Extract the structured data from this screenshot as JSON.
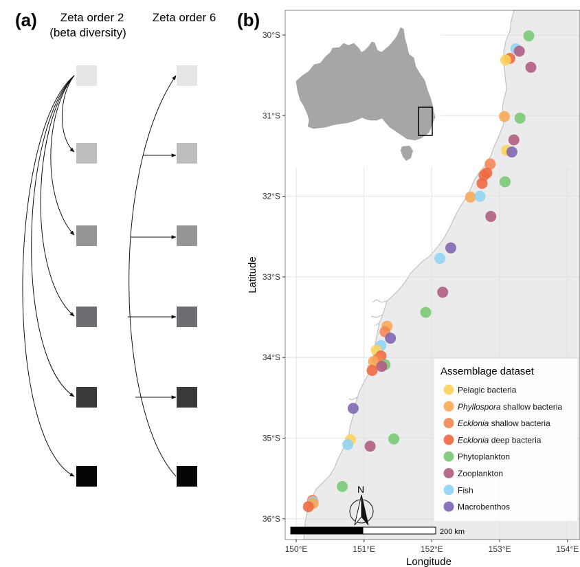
{
  "panel_a": {
    "label": "(a)",
    "col1_title_line1": "Zeta order 2",
    "col1_title_line2": "(beta diversity)",
    "col2_title": "Zeta order 6",
    "square_colors": [
      "#e6e6e7",
      "#bcbdbf",
      "#949597",
      "#6c6d70",
      "#38393b",
      "#050505"
    ]
  },
  "panel_b": {
    "label": "(b)",
    "xlabel": "Longitude",
    "ylabel": "Latitude",
    "x_ticks": [
      "150°E",
      "151°E",
      "152°E",
      "153°E",
      "154°E"
    ],
    "y_ticks": [
      "30°S",
      "31°S",
      "32°S",
      "33°S",
      "34°S",
      "35°S",
      "36°S"
    ],
    "scale_bar_label": "200 km",
    "north_label": "N",
    "legend": {
      "title": "Assemblage dataset",
      "items": [
        {
          "key": "pelagic",
          "prefix": "",
          "italic": "",
          "label": "Pelagic bacteria",
          "color": "#fbd35a"
        },
        {
          "key": "phyllospora",
          "prefix": "",
          "italic": "Phyllospora",
          "label": " shallow bacteria",
          "color": "#f7a956"
        },
        {
          "key": "ecklonia_shallow",
          "prefix": "",
          "italic": "Ecklonia",
          "label": " shallow bacteria",
          "color": "#f38552"
        },
        {
          "key": "ecklonia_deep",
          "prefix": "",
          "italic": "Ecklonia",
          "label": " deep bacteria",
          "color": "#ee6840"
        },
        {
          "key": "phytoplankton",
          "prefix": "",
          "italic": "",
          "label": "Phytoplankton",
          "color": "#79c774"
        },
        {
          "key": "zooplankton",
          "prefix": "",
          "italic": "",
          "label": "Zooplankton",
          "color": "#b05a80"
        },
        {
          "key": "fish",
          "prefix": "",
          "italic": "",
          "label": "Fish",
          "color": "#8fd3f3"
        },
        {
          "key": "macrobenthos",
          "prefix": "",
          "italic": "",
          "label": "Macrobenthos",
          "color": "#7c64b2"
        }
      ]
    },
    "axis_ranges": {
      "lon": [
        149.82,
        154.17
      ],
      "lat": [
        -36.28,
        -29.72
      ]
    },
    "inset": "Australia with study region box",
    "sites": [
      {
        "d": "phytoplankton",
        "lon": 153.43,
        "lat": -30.01
      },
      {
        "d": "fish",
        "lon": 153.24,
        "lat": -30.17
      },
      {
        "d": "zooplankton",
        "lon": 153.29,
        "lat": -30.2
      },
      {
        "d": "ecklonia_deep",
        "lon": 153.15,
        "lat": -30.29
      },
      {
        "d": "pelagic",
        "lon": 153.09,
        "lat": -30.31
      },
      {
        "d": "zooplankton",
        "lon": 153.46,
        "lat": -30.4
      },
      {
        "d": "phyllospora",
        "lon": 153.07,
        "lat": -31.01
      },
      {
        "d": "phytoplankton",
        "lon": 153.3,
        "lat": -31.03
      },
      {
        "d": "zooplankton",
        "lon": 153.21,
        "lat": -31.3
      },
      {
        "d": "pelagic",
        "lon": 153.1,
        "lat": -31.43
      },
      {
        "d": "macrobenthos",
        "lon": 153.18,
        "lat": -31.45
      },
      {
        "d": "ecklonia_shallow",
        "lon": 152.86,
        "lat": -31.6
      },
      {
        "d": "ecklonia_deep",
        "lon": 152.81,
        "lat": -31.71
      },
      {
        "d": "ecklonia_deep",
        "lon": 152.77,
        "lat": -31.74
      },
      {
        "d": "ecklonia_deep",
        "lon": 152.74,
        "lat": -31.84
      },
      {
        "d": "phytoplankton",
        "lon": 153.08,
        "lat": -31.82
      },
      {
        "d": "phyllospora",
        "lon": 152.57,
        "lat": -32.01
      },
      {
        "d": "fish",
        "lon": 152.71,
        "lat": -32.0
      },
      {
        "d": "zooplankton",
        "lon": 152.87,
        "lat": -32.25
      },
      {
        "d": "macrobenthos",
        "lon": 152.28,
        "lat": -32.64
      },
      {
        "d": "fish",
        "lon": 152.12,
        "lat": -32.77
      },
      {
        "d": "zooplankton",
        "lon": 152.16,
        "lat": -33.19
      },
      {
        "d": "phytoplankton",
        "lon": 151.91,
        "lat": -33.44
      },
      {
        "d": "phyllospora",
        "lon": 151.34,
        "lat": -33.61
      },
      {
        "d": "ecklonia_shallow",
        "lon": 151.31,
        "lat": -33.68
      },
      {
        "d": "macrobenthos",
        "lon": 151.39,
        "lat": -33.76
      },
      {
        "d": "fish",
        "lon": 151.25,
        "lat": -33.85
      },
      {
        "d": "pelagic",
        "lon": 151.18,
        "lat": -33.91
      },
      {
        "d": "ecklonia_deep",
        "lon": 151.25,
        "lat": -33.98
      },
      {
        "d": "ecklonia_shallow",
        "lon": 151.2,
        "lat": -34.02
      },
      {
        "d": "phyllospora",
        "lon": 151.14,
        "lat": -34.05
      },
      {
        "d": "phytoplankton",
        "lon": 151.31,
        "lat": -34.09
      },
      {
        "d": "zooplankton",
        "lon": 151.26,
        "lat": -34.11
      },
      {
        "d": "ecklonia_deep",
        "lon": 151.12,
        "lat": -34.16
      },
      {
        "d": "macrobenthos",
        "lon": 150.84,
        "lat": -34.63
      },
      {
        "d": "phytoplankton",
        "lon": 151.44,
        "lat": -35.01
      },
      {
        "d": "pelagic",
        "lon": 150.8,
        "lat": -35.02
      },
      {
        "d": "fish",
        "lon": 150.76,
        "lat": -35.08
      },
      {
        "d": "zooplankton",
        "lon": 151.09,
        "lat": -35.1
      },
      {
        "d": "phytoplankton",
        "lon": 150.68,
        "lat": -35.6
      },
      {
        "d": "ecklonia_shallow",
        "lon": 150.24,
        "lat": -35.77
      },
      {
        "d": "fish",
        "lon": 150.25,
        "lat": -35.79
      },
      {
        "d": "phyllospora",
        "lon": 150.25,
        "lat": -35.81
      },
      {
        "d": "ecklonia_deep",
        "lon": 150.18,
        "lat": -35.85
      }
    ]
  }
}
